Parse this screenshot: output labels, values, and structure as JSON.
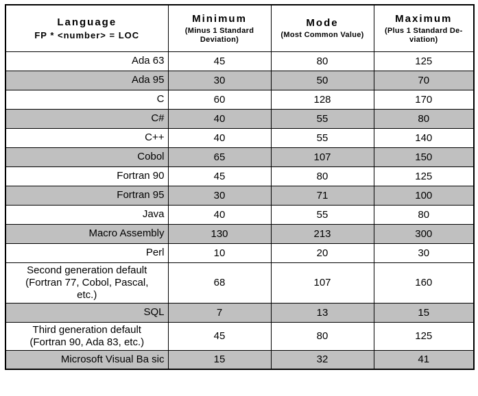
{
  "header": {
    "language_title": "Language",
    "language_subtitle": "FP * <number> = LOC",
    "columns": [
      {
        "title": "Minimum",
        "subtitle": "(Minus 1 Standard\nDeviation)"
      },
      {
        "title": "Mode",
        "subtitle": "(Most Common Value)"
      },
      {
        "title": "Maximum",
        "subtitle": "(Plus 1 Standard De-\nviation)"
      }
    ]
  },
  "rows": [
    {
      "language": "Ada 63",
      "minimum": "45",
      "mode": "80",
      "maximum": "125",
      "shaded": false,
      "align": "right"
    },
    {
      "language": "Ada 95",
      "minimum": "30",
      "mode": "50",
      "maximum": "70",
      "shaded": true,
      "align": "right"
    },
    {
      "language": "C",
      "minimum": "60",
      "mode": "128",
      "maximum": "170",
      "shaded": false,
      "align": "right"
    },
    {
      "language": "C#",
      "minimum": "40",
      "mode": "55",
      "maximum": "80",
      "shaded": true,
      "align": "right"
    },
    {
      "language": "C++",
      "minimum": "40",
      "mode": "55",
      "maximum": "140",
      "shaded": false,
      "align": "right"
    },
    {
      "language": "Cobol",
      "minimum": "65",
      "mode": "107",
      "maximum": "150",
      "shaded": true,
      "align": "right"
    },
    {
      "language": "Fortran 90",
      "minimum": "45",
      "mode": "80",
      "maximum": "125",
      "shaded": false,
      "align": "right"
    },
    {
      "language": "Fortran 95",
      "minimum": "30",
      "mode": "71",
      "maximum": "100",
      "shaded": true,
      "align": "right"
    },
    {
      "language": "Java",
      "minimum": "40",
      "mode": "55",
      "maximum": "80",
      "shaded": false,
      "align": "right"
    },
    {
      "language": "Macro Assembly",
      "minimum": "130",
      "mode": "213",
      "maximum": "300",
      "shaded": true,
      "align": "right"
    },
    {
      "language": "Perl",
      "minimum": "10",
      "mode": "20",
      "maximum": "30",
      "shaded": false,
      "align": "right"
    },
    {
      "language": "Second generation default\n(Fortran 77, Cobol, Pascal,\netc.)",
      "minimum": "68",
      "mode": "107",
      "maximum": "160",
      "shaded": false,
      "align": "center"
    },
    {
      "language": "SQL",
      "minimum": "7",
      "mode": "13",
      "maximum": "15",
      "shaded": true,
      "align": "right"
    },
    {
      "language": "Third generation default\n(Fortran 90, Ada 83, etc.)",
      "minimum": "45",
      "mode": "80",
      "maximum": "125",
      "shaded": false,
      "align": "center"
    },
    {
      "language": "Microsoft Visual Ba sic",
      "minimum": "15",
      "mode": "32",
      "maximum": "41",
      "shaded": true,
      "align": "right"
    }
  ],
  "colors": {
    "shaded_row": "#c0c0c0",
    "border": "#000000"
  }
}
